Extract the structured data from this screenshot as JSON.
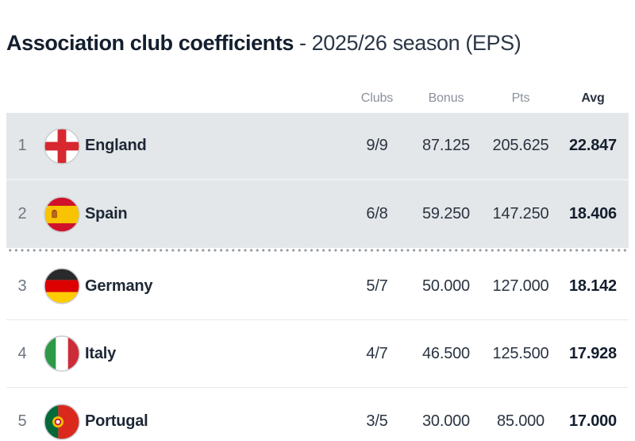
{
  "title": {
    "main": "Association club coefficients",
    "sub": "- 2025/26 season (EPS)"
  },
  "table": {
    "headers": {
      "clubs": "Clubs",
      "bonus": "Bonus",
      "pts": "Pts",
      "avg": "Avg"
    },
    "sorted_by": "Avg",
    "rows": [
      {
        "rank": "1",
        "country": "England",
        "flag": "england-flag-icon",
        "clubs": "9/9",
        "bonus": "87.125",
        "pts": "205.625",
        "avg": "22.847",
        "highlighted": true
      },
      {
        "rank": "2",
        "country": "Spain",
        "flag": "spain-flag-icon",
        "clubs": "6/8",
        "bonus": "59.250",
        "pts": "147.250",
        "avg": "18.406",
        "highlighted": true
      },
      {
        "rank": "3",
        "country": "Germany",
        "flag": "germany-flag-icon",
        "clubs": "5/7",
        "bonus": "50.000",
        "pts": "127.000",
        "avg": "18.142",
        "highlighted": false
      },
      {
        "rank": "4",
        "country": "Italy",
        "flag": "italy-flag-icon",
        "clubs": "4/7",
        "bonus": "46.500",
        "pts": "125.500",
        "avg": "17.928",
        "highlighted": false
      },
      {
        "rank": "5",
        "country": "Portugal",
        "flag": "portugal-flag-icon",
        "clubs": "3/5",
        "bonus": "30.000",
        "pts": "85.000",
        "avg": "17.000",
        "highlighted": false
      }
    ]
  },
  "colors": {
    "highlight_row_bg": "#e4e7e9",
    "title_text": "#131e2e",
    "header_text": "#8a919b",
    "value_text": "#2a3441",
    "divider_dot": "#969da4",
    "flag_england_red": "#d7282f",
    "flag_spain_red": "#d0122b",
    "flag_spain_yellow": "#f8c300",
    "flag_germany_black": "#2a2a2a",
    "flag_germany_red": "#dd0000",
    "flag_germany_gold": "#ffcc00",
    "flag_italy_green": "#2e9a47",
    "flag_italy_red": "#cd2b37",
    "flag_portugal_green": "#046a38",
    "flag_portugal_red": "#da291c"
  }
}
